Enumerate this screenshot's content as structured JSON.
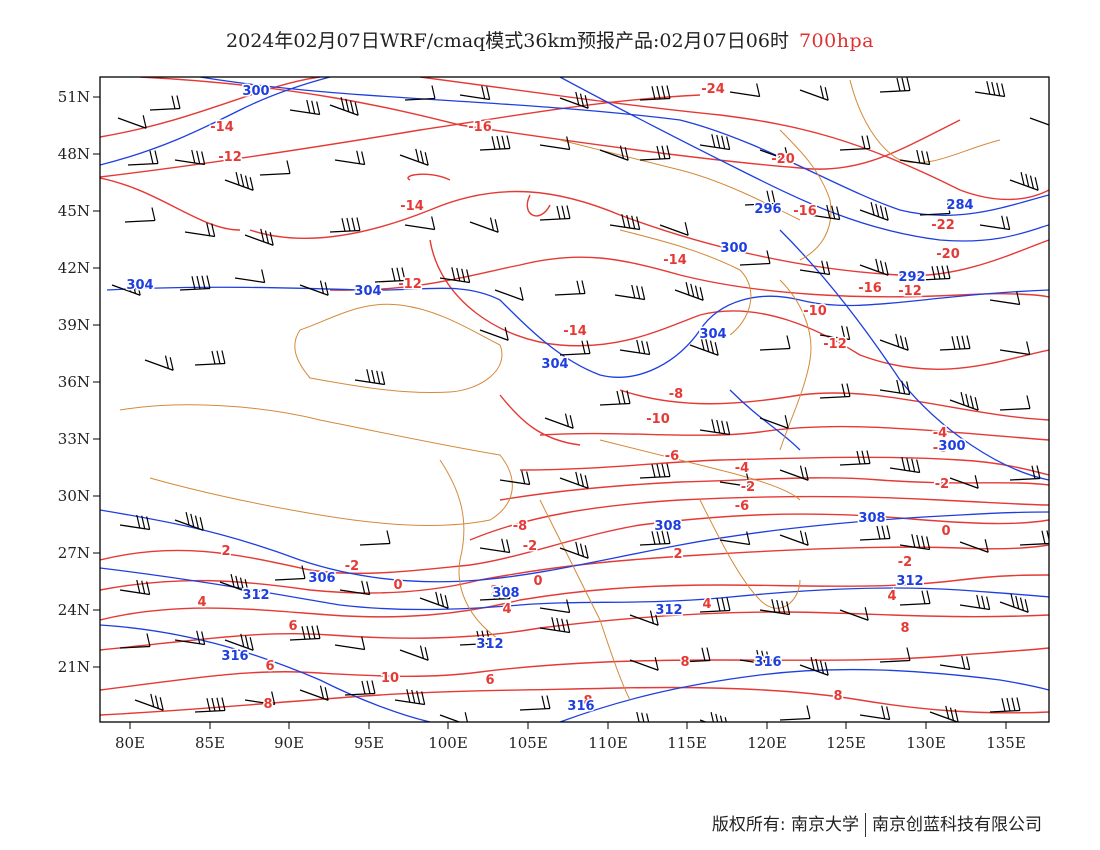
{
  "title": {
    "main": "2024年02月07日WRF/cmaq模式36km预报产品:02月07日06时",
    "level": "700hpa"
  },
  "colors": {
    "temperature": "#e53935",
    "height": "#1e3fe0",
    "boundary": "#d4893a",
    "wind": "#000000"
  },
  "map": {
    "lon_ticks": [
      "80E",
      "85E",
      "90E",
      "95E",
      "100E",
      "105E",
      "110E",
      "115E",
      "120E",
      "125E",
      "130E",
      "135E"
    ],
    "lat_ticks": [
      "51N",
      "48N",
      "45N",
      "42N",
      "39N",
      "36N",
      "33N",
      "30N",
      "27N",
      "24N",
      "21N"
    ],
    "temperature_labels": [
      "-14",
      "-16",
      "-12",
      "-24",
      "-20",
      "-16",
      "-22",
      "-20",
      "-14",
      "-12",
      "-14",
      "-16",
      "-12",
      "-14",
      "-10",
      "-12",
      "-10",
      "-8",
      "-6",
      "-4",
      "-2",
      "-8",
      "-6",
      "-4",
      "-6",
      "-2",
      "-2",
      "-2",
      "0",
      "0",
      "-2",
      "2",
      "0",
      "2",
      "2",
      "4",
      "4",
      "4",
      "6",
      "4",
      "6",
      "6",
      "10",
      "8",
      "8",
      "8",
      "8",
      "8"
    ],
    "height_labels": [
      "300",
      "304",
      "304",
      "296",
      "300",
      "284",
      "292",
      "304",
      "304",
      "308",
      "308",
      "306",
      "312",
      "308",
      "312",
      "312",
      "316",
      "312",
      "316",
      "316",
      "300"
    ]
  },
  "footer": {
    "copyright": "版权所有: 南京大学",
    "company": "南京创蓝科技有限公司"
  }
}
